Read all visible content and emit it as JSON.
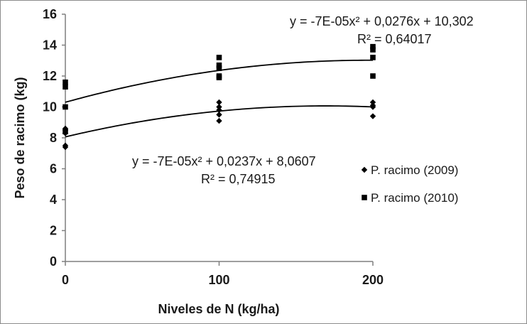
{
  "chart_data": {
    "type": "scatter",
    "xlabel": "Niveles de N (kg/ha)",
    "ylabel": "Peso de racimo (kg)",
    "xlim": [
      0,
      200
    ],
    "ylim": [
      0,
      16
    ],
    "x_ticks": [
      "0",
      "100",
      "200"
    ],
    "y_ticks": [
      "0",
      "2",
      "4",
      "6",
      "8",
      "10",
      "12",
      "14",
      "16"
    ],
    "grid": false,
    "legend_position": "right",
    "series": [
      {
        "name": "P. racimo (2009)",
        "marker": "diamond",
        "color": "#000000",
        "points": [
          [
            0,
            7.4
          ],
          [
            0,
            7.5
          ],
          [
            0,
            8.5
          ],
          [
            0,
            8.6
          ],
          [
            0,
            8.3
          ],
          [
            100,
            9.1
          ],
          [
            100,
            9.5
          ],
          [
            100,
            10.0
          ],
          [
            100,
            10.3
          ],
          [
            100,
            9.8
          ],
          [
            200,
            9.4
          ],
          [
            200,
            10.0
          ],
          [
            200,
            10.3
          ],
          [
            200,
            10.1
          ]
        ],
        "trendline": {
          "type": "poly2",
          "a": -7e-05,
          "b": 0.0237,
          "c": 8.0607
        },
        "equation": "y = -7E-05x² + 0,0237x + 8,0607",
        "r2": "R² = 0,74915"
      },
      {
        "name": "P. racimo (2010)",
        "marker": "square",
        "color": "#000000",
        "points": [
          [
            0,
            8.4
          ],
          [
            0,
            10.0
          ],
          [
            0,
            11.3
          ],
          [
            0,
            11.6
          ],
          [
            100,
            11.9
          ],
          [
            100,
            12.0
          ],
          [
            100,
            12.5
          ],
          [
            100,
            12.7
          ],
          [
            100,
            13.2
          ],
          [
            200,
            12.0
          ],
          [
            200,
            13.2
          ],
          [
            200,
            13.7
          ],
          [
            200,
            13.9
          ]
        ],
        "trendline": {
          "type": "poly2",
          "a": -7e-05,
          "b": 0.0276,
          "c": 10.302
        },
        "equation": "y = -7E-05x² + 0,0276x + 10,302",
        "r2": "R² = 0,64017"
      }
    ]
  }
}
